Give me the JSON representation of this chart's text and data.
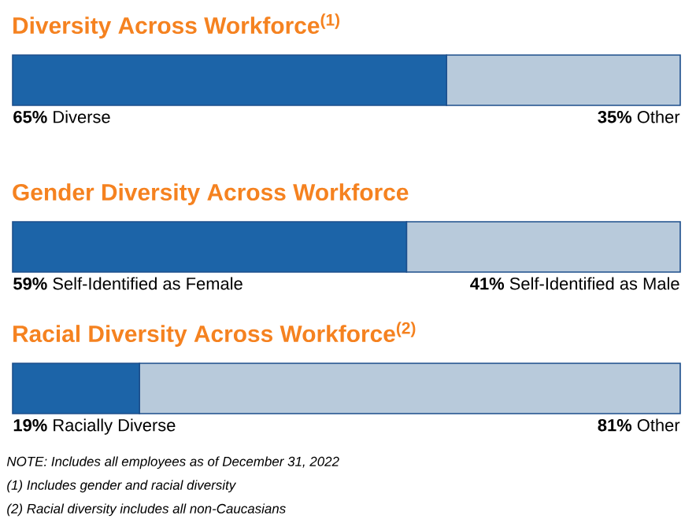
{
  "chart_data": [
    {
      "type": "bar",
      "orientation": "horizontal",
      "stacked": true,
      "title": "Diversity Across Workforce$^{(1)}$",
      "categories": [
        null
      ],
      "xlim": [
        0,
        100
      ],
      "tick_labels": false,
      "series": [
        {
          "name": "Diverse",
          "color": "#1c64a8",
          "values": [
            65
          ],
          "value_labels": [
            "65%"
          ]
        },
        {
          "name": "Other",
          "color": "#b8cadb",
          "values": [
            35
          ],
          "value_labels": [
            "35%"
          ]
        }
      ]
    },
    {
      "type": "bar",
      "orientation": "horizontal",
      "stacked": true,
      "title": "Gender Diversity Across Workforce",
      "categories": [
        null
      ],
      "xlim": [
        0,
        100
      ],
      "tick_labels": false,
      "series": [
        {
          "name": "Self-Identified as Female",
          "color": "#1c64a8",
          "values": [
            59
          ],
          "value_labels": [
            "59%"
          ]
        },
        {
          "name": "Self-Identified as Male",
          "color": "#b8cadb",
          "values": [
            41
          ],
          "value_labels": [
            "41%"
          ]
        }
      ]
    },
    {
      "type": "bar",
      "orientation": "horizontal",
      "stacked": true,
      "title": "Racial Diversity Across Workforce$^{(2)}$",
      "categories": [
        null
      ],
      "xlim": [
        0,
        100
      ],
      "tick_labels": false,
      "series": [
        {
          "name": "Racially Diverse",
          "color": "#1c64a8",
          "values": [
            19
          ],
          "value_labels": [
            "19%"
          ]
        },
        {
          "name": "Other",
          "color": "#b8cadb",
          "values": [
            81
          ],
          "value_labels": [
            "81%"
          ]
        }
      ],
      "annotations": [
        "NOTE: Includes all employees as of December 31, 2022",
        "(1) Includes gender and racial diversity",
        "(2) Racial diversity includes all non-Caucasians"
      ]
    }
  ]
}
